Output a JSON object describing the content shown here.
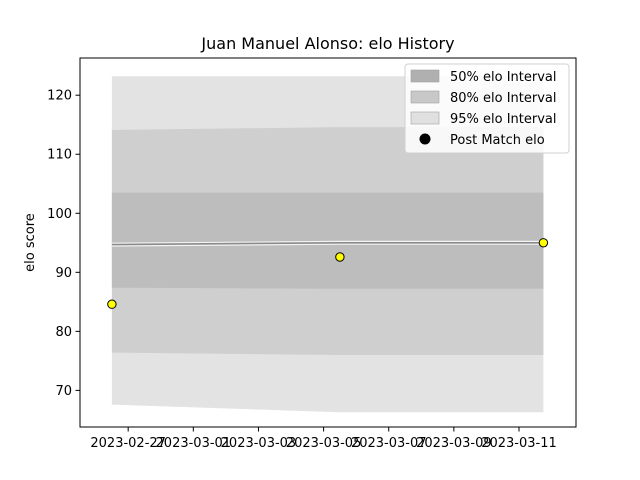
{
  "chart_data": {
    "type": "area",
    "title": "Juan Manuel Alonso: elo History",
    "xlabel": "",
    "ylabel": "elo score",
    "xlim": [
      "2023-02-25T12:30",
      "2023-03-12T18:00"
    ],
    "ylim": [
      63.8,
      126.3
    ],
    "x_ticks": [
      "2023-02-27",
      "2023-03-01",
      "2023-03-03",
      "2023-03-05",
      "2023-03-07",
      "2023-03-09",
      "2023-03-11"
    ],
    "y_ticks": [
      70,
      80,
      90,
      100,
      110,
      120
    ],
    "x": [
      "2023-02-26T12:00",
      "2023-03-05T12:00",
      "2023-03-11T18:00"
    ],
    "median": [
      94.7,
      95.0,
      95.0
    ],
    "intervals": [
      {
        "name": "95% elo Interval",
        "lower": [
          67.6,
          66.3,
          66.3
        ],
        "upper": [
          123.2,
          123.2,
          123.2
        ],
        "color": "#e3e3e3"
      },
      {
        "name": "80% elo Interval",
        "lower": [
          76.4,
          76.0,
          76.0
        ],
        "upper": [
          114.1,
          114.6,
          114.6
        ],
        "color": "#cfcfcf"
      },
      {
        "name": "50% elo Interval",
        "lower": [
          87.4,
          87.2,
          87.2
        ],
        "upper": [
          103.5,
          103.5,
          103.5
        ],
        "color": "#bdbdbd"
      }
    ],
    "points": {
      "name": "Post Match elo",
      "x": [
        "2023-02-26T12:00",
        "2023-03-05T12:00",
        "2023-03-11T18:00"
      ],
      "y": [
        84.6,
        92.6,
        95.0
      ],
      "color": "#ffff00"
    },
    "legend": {
      "placement": "upper right",
      "entries": [
        "50% elo Interval",
        "80% elo Interval",
        "95% elo Interval",
        "Post Match elo"
      ]
    },
    "grid": false
  }
}
